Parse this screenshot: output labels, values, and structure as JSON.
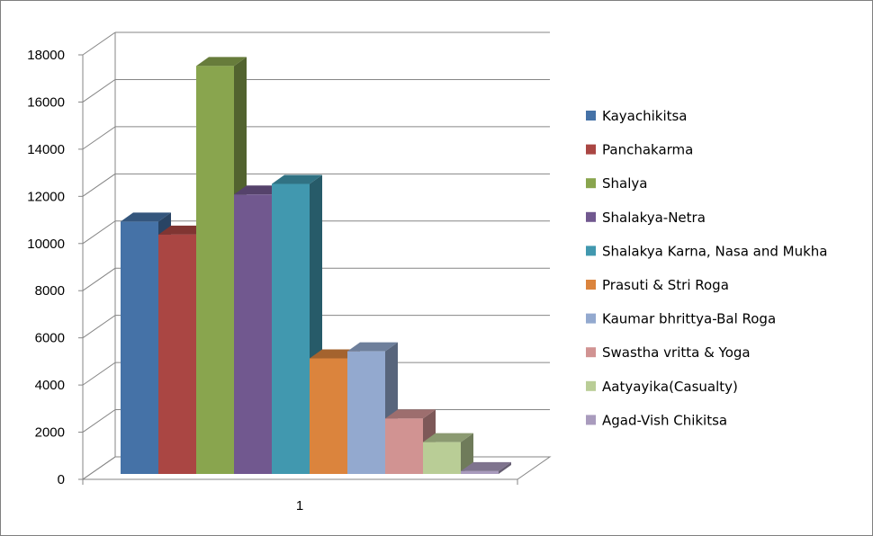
{
  "chart_data": {
    "type": "bar",
    "style": "3d-clustered-column",
    "categories": [
      "1"
    ],
    "ylim": [
      0,
      18000
    ],
    "yticks": [
      0,
      2000,
      4000,
      6000,
      8000,
      10000,
      12000,
      14000,
      16000,
      18000
    ],
    "grid": true,
    "legend_position": "right",
    "series": [
      {
        "name": "Kayachikitsa",
        "values": [
          10700
        ],
        "color": "#4572A7"
      },
      {
        "name": "Panchakarma",
        "values": [
          10150
        ],
        "color": "#AA4643"
      },
      {
        "name": "Shalya",
        "values": [
          17300
        ],
        "color": "#89A54E"
      },
      {
        "name": "Shalakya-Netra",
        "values": [
          11850
        ],
        "color": "#71588F"
      },
      {
        "name": "Shalakya Karna, Nasa and Mukha",
        "values": [
          12300
        ],
        "color": "#4198AF"
      },
      {
        "name": "Prasuti & Stri Roga",
        "values": [
          4900
        ],
        "color": "#DB843D"
      },
      {
        "name": "Kaumar bhrittya-Bal Roga",
        "values": [
          5200
        ],
        "color": "#93A9CF"
      },
      {
        "name": "Swastha vritta & Yoga",
        "values": [
          2350
        ],
        "color": "#D19392"
      },
      {
        "name": "Aatyayika(Casualty)",
        "values": [
          1350
        ],
        "color": "#B9CD96"
      },
      {
        "name": "Agad-Vish Chikitsa",
        "values": [
          120
        ],
        "color": "#A99BBD"
      }
    ]
  }
}
